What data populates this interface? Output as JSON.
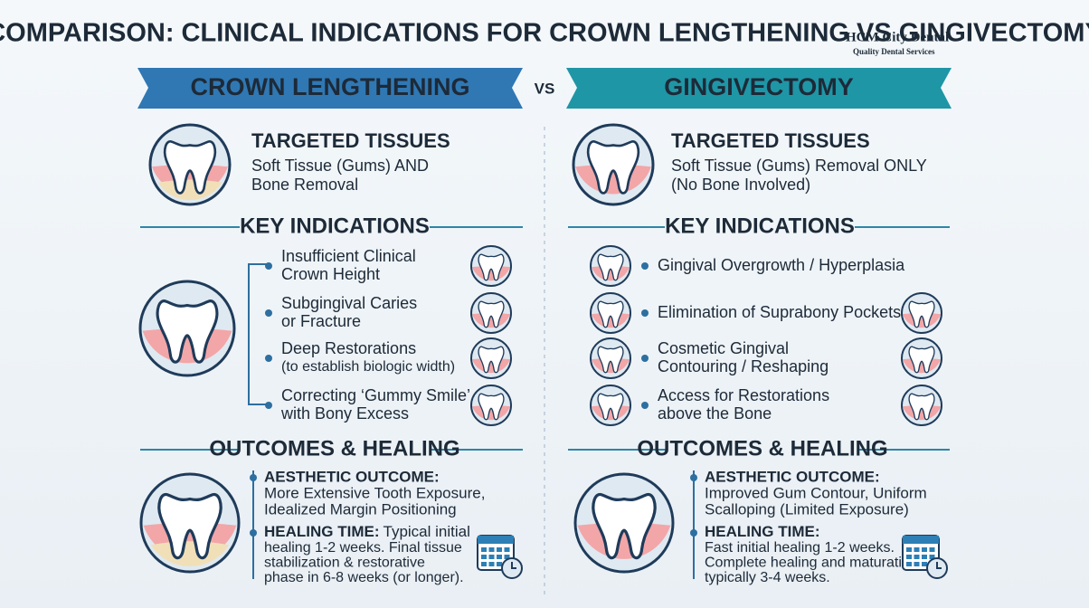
{
  "title": "COMPARISON: CLINICAL INDICATIONS FOR CROWN LENGTHENING VS GINGIVECTOMY",
  "logo": {
    "name": "HCM City Dental",
    "tagline": "Quality Dental Services"
  },
  "vs": "VS",
  "columns": [
    {
      "header": "CROWN LENGTHENING",
      "targeted": {
        "title": "TARGETED TISSUES",
        "lines": [
          "Soft Tissue (Gums) AND",
          "Bone Removal"
        ]
      },
      "indications": {
        "title": "KEY INDICATIONS",
        "items": [
          [
            "Insufficient Clinical",
            "Crown Height"
          ],
          [
            "Subgingival Caries",
            "or Fracture"
          ],
          [
            "Deep Restorations",
            "(to establish biologic width)"
          ],
          [
            "Correcting ‘Gummy Smile’",
            "with Bony Excess"
          ]
        ]
      },
      "outcomes": {
        "title": "OUTCOMES & HEALING",
        "aesthetic": {
          "label": "AESTHETIC OUTCOME:",
          "lines": [
            "More Extensive Tooth Exposure,",
            "Idealized Margin Positioning"
          ]
        },
        "healing": {
          "label": "HEALING TIME:",
          "first": "Typical initial",
          "lines": [
            "healing 1-2 weeks. Final tissue",
            "stabilization & restorative",
            "phase in 6-8 weeks (or longer)."
          ]
        }
      }
    },
    {
      "header": "GINGIVECTOMY",
      "targeted": {
        "title": "TARGETED TISSUES",
        "lines": [
          "Soft Tissue (Gums) Removal ONLY",
          "(No Bone Involved)"
        ]
      },
      "indications": {
        "title": "KEY INDICATIONS",
        "items": [
          [
            "Gingival Overgrowth / Hyperplasia"
          ],
          [
            "Elimination of Suprabony Pockets"
          ],
          [
            "Cosmetic Gingival",
            "Contouring / Reshaping"
          ],
          [
            "Access for Restorations",
            "above the Bone"
          ]
        ]
      },
      "outcomes": {
        "title": "OUTCOMES & HEALING",
        "aesthetic": {
          "label": "AESTHETIC OUTCOME:",
          "lines": [
            "Improved Gum Contour, Uniform",
            "Scalloping (Limited Exposure)"
          ]
        },
        "healing": {
          "label": "HEALING TIME:",
          "first": "",
          "lines": [
            "Fast initial healing 1-2 weeks.",
            "Complete healing and maturation",
            "typically 3-4 weeks."
          ]
        }
      }
    }
  ]
}
